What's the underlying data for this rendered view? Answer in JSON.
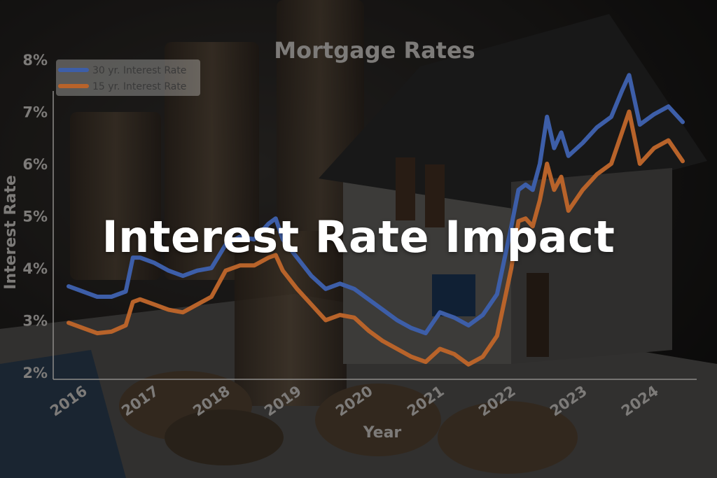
{
  "overlay_text": "Interest Rate Impact",
  "colors": {
    "series_30": "#3d5ea8",
    "series_15": "#b8632a",
    "axis_text": "#7d7b79",
    "axis_line": "#8d8b89",
    "legend_bg": "#d8d6d3",
    "legend_text": "#3a3a3a"
  },
  "chart_data": {
    "type": "line",
    "title": "Mortgage Rates",
    "xlabel": "Year",
    "ylabel": "Interest Rate",
    "xlim": [
      2016,
      2024.6
    ],
    "ylim": [
      2,
      8
    ],
    "x_ticks": [
      "2016",
      "2017",
      "2018",
      "2019",
      "2020",
      "2021",
      "2022",
      "2023",
      "2024"
    ],
    "y_ticks": [
      "2%",
      "3%",
      "4%",
      "5%",
      "6%",
      "7%",
      "8%"
    ],
    "legend_position": "top-left",
    "grid": false,
    "series": [
      {
        "name": "30 yr. Interest Rate",
        "x": [
          2016.0,
          2016.2,
          2016.4,
          2016.6,
          2016.8,
          2016.9,
          2017.0,
          2017.2,
          2017.4,
          2017.6,
          2017.8,
          2018.0,
          2018.2,
          2018.4,
          2018.6,
          2018.8,
          2018.9,
          2019.0,
          2019.2,
          2019.4,
          2019.6,
          2019.8,
          2020.0,
          2020.2,
          2020.4,
          2020.6,
          2020.8,
          2021.0,
          2021.2,
          2021.4,
          2021.6,
          2021.8,
          2022.0,
          2022.2,
          2022.3,
          2022.4,
          2022.5,
          2022.6,
          2022.7,
          2022.8,
          2022.9,
          2023.0,
          2023.2,
          2023.4,
          2023.6,
          2023.75,
          2023.85,
          2024.0,
          2024.2,
          2024.4,
          2024.6
        ],
        "y": [
          3.65,
          3.55,
          3.45,
          3.45,
          3.55,
          4.2,
          4.2,
          4.1,
          3.95,
          3.85,
          3.95,
          4.0,
          4.45,
          4.6,
          4.55,
          4.85,
          4.95,
          4.55,
          4.2,
          3.85,
          3.6,
          3.7,
          3.6,
          3.4,
          3.2,
          3.0,
          2.85,
          2.75,
          3.15,
          3.05,
          2.9,
          3.1,
          3.5,
          4.8,
          5.5,
          5.6,
          5.5,
          6.0,
          6.9,
          6.3,
          6.6,
          6.15,
          6.4,
          6.7,
          6.9,
          7.4,
          7.7,
          6.75,
          6.95,
          7.1,
          6.8
        ]
      },
      {
        "name": "15 yr. Interest Rate",
        "x": [
          2016.0,
          2016.2,
          2016.4,
          2016.6,
          2016.8,
          2016.9,
          2017.0,
          2017.2,
          2017.4,
          2017.6,
          2017.8,
          2018.0,
          2018.2,
          2018.4,
          2018.6,
          2018.8,
          2018.9,
          2019.0,
          2019.2,
          2019.4,
          2019.6,
          2019.8,
          2020.0,
          2020.2,
          2020.4,
          2020.6,
          2020.8,
          2021.0,
          2021.2,
          2021.4,
          2021.6,
          2021.8,
          2022.0,
          2022.2,
          2022.3,
          2022.4,
          2022.5,
          2022.6,
          2022.7,
          2022.8,
          2022.9,
          2023.0,
          2023.2,
          2023.4,
          2023.6,
          2023.75,
          2023.85,
          2024.0,
          2024.2,
          2024.4,
          2024.6
        ],
        "y": [
          2.95,
          2.85,
          2.75,
          2.78,
          2.9,
          3.35,
          3.4,
          3.3,
          3.2,
          3.15,
          3.3,
          3.45,
          3.95,
          4.05,
          4.05,
          4.2,
          4.25,
          3.95,
          3.6,
          3.3,
          3.0,
          3.1,
          3.05,
          2.8,
          2.6,
          2.45,
          2.3,
          2.2,
          2.45,
          2.35,
          2.15,
          2.3,
          2.7,
          4.0,
          4.9,
          4.95,
          4.8,
          5.3,
          6.0,
          5.5,
          5.75,
          5.1,
          5.5,
          5.8,
          6.0,
          6.6,
          7.0,
          6.0,
          6.3,
          6.45,
          6.05
        ]
      }
    ]
  }
}
